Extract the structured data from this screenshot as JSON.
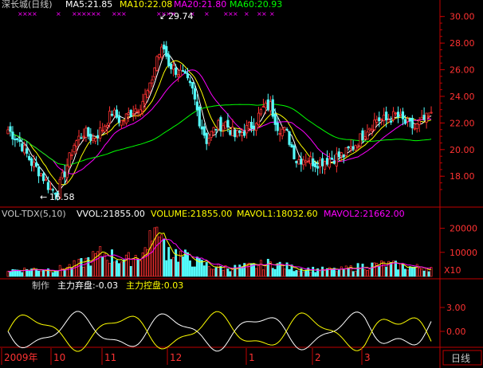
{
  "header": {
    "title": "深长城(日线)",
    "ma5": "MA5:21.85",
    "ma10": "MA10:22.08",
    "ma20": "MA20:21.80",
    "ma60": "MA60:20.93"
  },
  "annotations": {
    "high": "29.74",
    "low": "16.58"
  },
  "volume_header": {
    "name": "VOL-TDX(5,10)",
    "vvol": "VVOL:21855.00",
    "volume": "VOLUME:21855.00",
    "mavol1": "MAVOL1:18032.60",
    "mavol2": "MAVOL2:21662.00"
  },
  "indicator_header": {
    "name": "制作",
    "abandon": "主力弃盘:-0.03",
    "control": "主力控盘:0.03"
  },
  "x_labels": [
    "2009年",
    "10",
    "11",
    "12",
    "1",
    "2",
    "3"
  ],
  "period_button": "日线",
  "volume_unit": "X10",
  "colors": {
    "background": "#000000",
    "up": "#ff3232",
    "down": "#54fcfc",
    "ma5": "#ffffff",
    "ma10": "#ffff00",
    "ma20": "#ff00ff",
    "ma60": "#00ff00",
    "axis": "#c00000",
    "price_label": "#ff3232",
    "abandon_line": "#ffffff",
    "control_line": "#ffff00"
  },
  "chart_data": [
    {
      "type": "candlestick",
      "title": "深长城(日线)",
      "ylim": [
        15.8,
        30.4
      ],
      "yticks": [
        18.0,
        20.0,
        22.0,
        24.0,
        26.0,
        28.0,
        30.0
      ],
      "x_ticks": [
        "2009年",
        "10",
        "11",
        "12",
        "1",
        "2",
        "3"
      ],
      "series": [
        {
          "name": "MA5",
          "value": 21.85
        },
        {
          "name": "MA10",
          "value": 22.08
        },
        {
          "name": "MA20",
          "value": 21.8
        },
        {
          "name": "MA60",
          "value": 20.93
        }
      ],
      "high": 29.74,
      "low": 16.58,
      "close_path": [
        [
          0,
          21.5
        ],
        [
          5,
          20.6
        ],
        [
          10,
          19.0
        ],
        [
          14,
          18.2
        ],
        [
          18,
          17.0
        ],
        [
          21,
          16.9
        ],
        [
          24,
          18.3
        ],
        [
          28,
          20.4
        ],
        [
          32,
          21.3
        ],
        [
          36,
          20.8
        ],
        [
          40,
          21.6
        ],
        [
          44,
          22.8
        ],
        [
          48,
          22.1
        ],
        [
          52,
          22.8
        ],
        [
          56,
          23.4
        ],
        [
          60,
          24.6
        ],
        [
          63,
          27.0
        ],
        [
          66,
          27.6
        ],
        [
          68,
          26.5
        ],
        [
          70,
          26.1
        ],
        [
          74,
          25.6
        ],
        [
          78,
          24.4
        ],
        [
          81,
          22.2
        ],
        [
          84,
          20.7
        ],
        [
          88,
          21.7
        ],
        [
          92,
          22.0
        ],
        [
          96,
          21.0
        ],
        [
          100,
          21.4
        ],
        [
          104,
          22.0
        ],
        [
          108,
          23.1
        ],
        [
          111,
          23.3
        ],
        [
          114,
          21.8
        ],
        [
          118,
          21.2
        ],
        [
          122,
          19.2
        ],
        [
          126,
          19.4
        ],
        [
          130,
          19.0
        ],
        [
          134,
          19.2
        ],
        [
          138,
          19.4
        ],
        [
          142,
          19.6
        ],
        [
          145,
          20.1
        ],
        [
          148,
          20.6
        ],
        [
          152,
          21.6
        ],
        [
          156,
          22.3
        ],
        [
          160,
          22.2
        ],
        [
          164,
          22.6
        ],
        [
          168,
          22.0
        ],
        [
          172,
          21.6
        ],
        [
          176,
          22.2
        ],
        [
          179,
          22.5
        ]
      ]
    },
    {
      "type": "bar",
      "title": "VOL-TDX(5,10)",
      "ylim": [
        0,
        23500
      ],
      "yticks": [
        10000,
        20000
      ],
      "volume": 21855.0,
      "mavol1": 18032.6,
      "mavol2": 21662.0,
      "level_path": [
        [
          0,
          2500
        ],
        [
          10,
          3000
        ],
        [
          20,
          2800
        ],
        [
          30,
          5000
        ],
        [
          40,
          9500
        ],
        [
          50,
          6500
        ],
        [
          60,
          11500
        ],
        [
          63,
          16000
        ],
        [
          66,
          12000
        ],
        [
          70,
          10000
        ],
        [
          78,
          6500
        ],
        [
          86,
          4000
        ],
        [
          96,
          3500
        ],
        [
          106,
          4500
        ],
        [
          112,
          5500
        ],
        [
          120,
          3500
        ],
        [
          130,
          2800
        ],
        [
          140,
          2600
        ],
        [
          150,
          4200
        ],
        [
          160,
          5000
        ],
        [
          170,
          3800
        ],
        [
          179,
          3500
        ]
      ]
    },
    {
      "type": "line",
      "title": "制作",
      "ylim": [
        -2,
        5
      ],
      "yticks": [
        0.0,
        3.0
      ],
      "series": [
        {
          "name": "主力弃盘",
          "value": -0.03
        },
        {
          "name": "主力控盘",
          "value": 0.03
        }
      ]
    }
  ]
}
